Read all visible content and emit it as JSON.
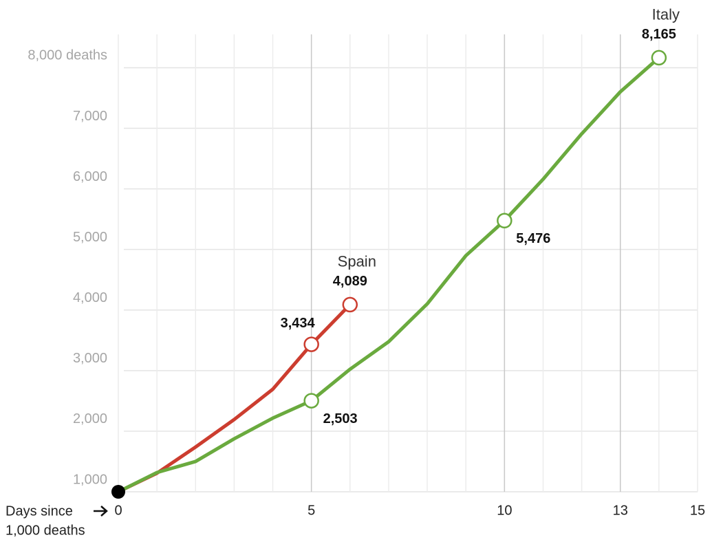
{
  "chart_data": {
    "type": "line",
    "xlabel": [
      "Days since",
      "1,000 deaths"
    ],
    "xlim": [
      0,
      15
    ],
    "xticks": [
      0,
      5,
      10,
      13,
      15
    ],
    "xminorticks": [
      1,
      2,
      3,
      4,
      6,
      7,
      8,
      9,
      11,
      12,
      14
    ],
    "ylim": [
      1000,
      8550
    ],
    "yticks": [
      {
        "value": 1000,
        "label": "1,000"
      },
      {
        "value": 2000,
        "label": "2,000"
      },
      {
        "value": 3000,
        "label": "3,000"
      },
      {
        "value": 4000,
        "label": "4,000"
      },
      {
        "value": 5000,
        "label": "5,000"
      },
      {
        "value": 6000,
        "label": "6,000"
      },
      {
        "value": 7000,
        "label": "7,000"
      },
      {
        "value": 8000,
        "label": "8,000 deaths"
      }
    ],
    "grid": true,
    "x": [
      0,
      1,
      2,
      3,
      4,
      5,
      6,
      7,
      8,
      9,
      10,
      11,
      12,
      13,
      14
    ],
    "series": [
      {
        "name": "Spain",
        "color": "#cc3d2f",
        "values": [
          1000,
          1307,
          1739,
          2193,
          2693,
          3434,
          4089,
          null,
          null,
          null,
          null,
          null,
          null,
          null,
          null
        ],
        "value_labels": [
          null,
          null,
          null,
          null,
          null,
          "3,434",
          "4,089",
          null,
          null,
          null,
          null,
          null,
          null,
          null,
          null
        ]
      },
      {
        "name": "Italy",
        "color": "#6aaa3e",
        "values": [
          1000,
          1318,
          1500,
          1875,
          2216,
          2503,
          3023,
          3477,
          4102,
          4898,
          5476,
          6159,
          6909,
          7602,
          8165
        ],
        "value_labels": [
          null,
          null,
          null,
          null,
          null,
          "2,503",
          null,
          null,
          null,
          null,
          "5,476",
          null,
          null,
          null,
          "8,165"
        ]
      }
    ]
  }
}
